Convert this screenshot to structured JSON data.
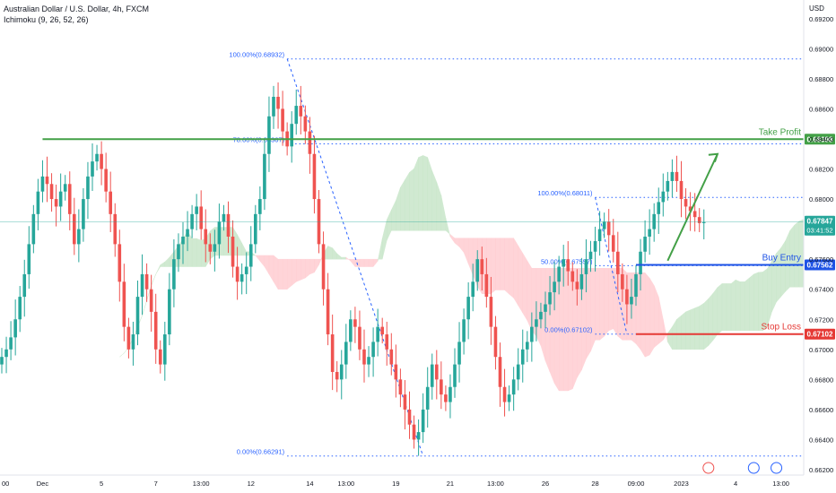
{
  "header": {
    "symbol_title": "Australian Dollar / U.S. Dollar, 4h, FXCM",
    "indicator": "Ichimoku (9, 26, 52, 26)",
    "currency": "USD"
  },
  "colors": {
    "bull": "#26a69a",
    "bear": "#ef5350",
    "fib": "#2962ff",
    "take_profit": "#43a047",
    "buy_entry": "#1e53e5",
    "stop_loss": "#e53935",
    "cloud_green": "#c8e6c9",
    "cloud_red": "#ffcdd2"
  },
  "chart_data": {
    "type": "candlestick",
    "ylim": [
      0.662,
      0.693
    ],
    "y_ticks": [
      "0.69200",
      "0.69000",
      "0.68800",
      "0.68600",
      "0.68400",
      "0.68200",
      "0.68000",
      "0.67600",
      "0.67400",
      "0.67200",
      "0.67000",
      "0.66800",
      "0.66600",
      "0.66400",
      "0.66200"
    ],
    "x_ticks": [
      {
        "label": "00",
        "i": 0
      },
      {
        "label": "Dec",
        "i": 9
      },
      {
        "label": "5",
        "i": 22
      },
      {
        "label": "7",
        "i": 34
      },
      {
        "label": "13:00",
        "i": 44
      },
      {
        "label": "12",
        "i": 55
      },
      {
        "label": "14",
        "i": 68
      },
      {
        "label": "13:00",
        "i": 76
      },
      {
        "label": "19",
        "i": 87
      },
      {
        "label": "21",
        "i": 99
      },
      {
        "label": "13:00",
        "i": 109
      },
      {
        "label": "26",
        "i": 120
      },
      {
        "label": "28",
        "i": 131
      },
      {
        "label": "09:00",
        "i": 140
      },
      {
        "label": "2023",
        "i": 150
      },
      {
        "label": "4",
        "i": 162
      },
      {
        "label": "13:00",
        "i": 172
      }
    ],
    "last_index": 155,
    "closes": [
      0.6695,
      0.67,
      0.6708,
      0.672,
      0.6735,
      0.675,
      0.677,
      0.679,
      0.6805,
      0.6815,
      0.681,
      0.68,
      0.6795,
      0.6805,
      0.681,
      0.679,
      0.677,
      0.678,
      0.68,
      0.6815,
      0.6825,
      0.683,
      0.682,
      0.6805,
      0.679,
      0.677,
      0.6745,
      0.6715,
      0.67,
      0.671,
      0.6735,
      0.675,
      0.674,
      0.6725,
      0.67,
      0.669,
      0.671,
      0.674,
      0.676,
      0.677,
      0.6775,
      0.678,
      0.679,
      0.6795,
      0.678,
      0.677,
      0.6765,
      0.677,
      0.6785,
      0.679,
      0.6775,
      0.6755,
      0.6745,
      0.675,
      0.6755,
      0.677,
      0.679,
      0.68,
      0.683,
      0.6855,
      0.6868,
      0.686,
      0.6845,
      0.6835,
      0.685,
      0.6862,
      0.6855,
      0.6845,
      0.683,
      0.68,
      0.677,
      0.674,
      0.671,
      0.6685,
      0.668,
      0.669,
      0.6705,
      0.672,
      0.6715,
      0.67,
      0.669,
      0.6695,
      0.6705,
      0.6715,
      0.671,
      0.67,
      0.669,
      0.668,
      0.667,
      0.666,
      0.665,
      0.664,
      0.6645,
      0.666,
      0.6675,
      0.669,
      0.668,
      0.667,
      0.6665,
      0.6675,
      0.669,
      0.6705,
      0.672,
      0.6735,
      0.6745,
      0.676,
      0.675,
      0.6735,
      0.6715,
      0.6695,
      0.6675,
      0.6665,
      0.667,
      0.668,
      0.669,
      0.67,
      0.6705,
      0.6715,
      0.672,
      0.6725,
      0.673,
      0.6738,
      0.6745,
      0.6755,
      0.676,
      0.6752,
      0.6745,
      0.674,
      0.675,
      0.676,
      0.6765,
      0.6772,
      0.678,
      0.6785,
      0.6776,
      0.6765,
      0.675,
      0.674,
      0.673,
      0.6735,
      0.675,
      0.6765,
      0.6775,
      0.678,
      0.679,
      0.6798,
      0.6805,
      0.6812,
      0.6818,
      0.6812,
      0.68,
      0.6795,
      0.6792,
      0.6788,
      0.6784,
      0.67847
    ],
    "fibonacci": [
      {
        "levels": [
          {
            "label": "100.00%(0.68932)",
            "price": 0.68932
          },
          {
            "label": "78.60%(0.68367)",
            "price": 0.68367
          },
          {
            "label": "0.00%(0.66291)",
            "price": 0.66291
          }
        ],
        "from_i": 63,
        "to_i": 185
      },
      {
        "levels": [
          {
            "label": "100.00%(0.68011)",
            "price": 0.68011
          },
          {
            "label": "50.00%(0.67557)",
            "price": 0.67557
          },
          {
            "label": "0.00%(0.67102)",
            "price": 0.67102
          }
        ],
        "from_i": 131,
        "to_i": 185
      }
    ],
    "trade_levels": [
      {
        "label": "Take Profit",
        "price": 0.68398,
        "value_label": "0.68398",
        "color_key": "take_profit"
      },
      {
        "label": "Buy Entry",
        "price": 0.67562,
        "value_label": "0.67562",
        "color_key": "buy_entry"
      },
      {
        "label": "Stop Loss",
        "price": 0.67102,
        "value_label": "0.67102",
        "color_key": "stop_loss"
      }
    ],
    "current_price": {
      "value": "0.67847",
      "countdown": "03:41:52"
    }
  }
}
